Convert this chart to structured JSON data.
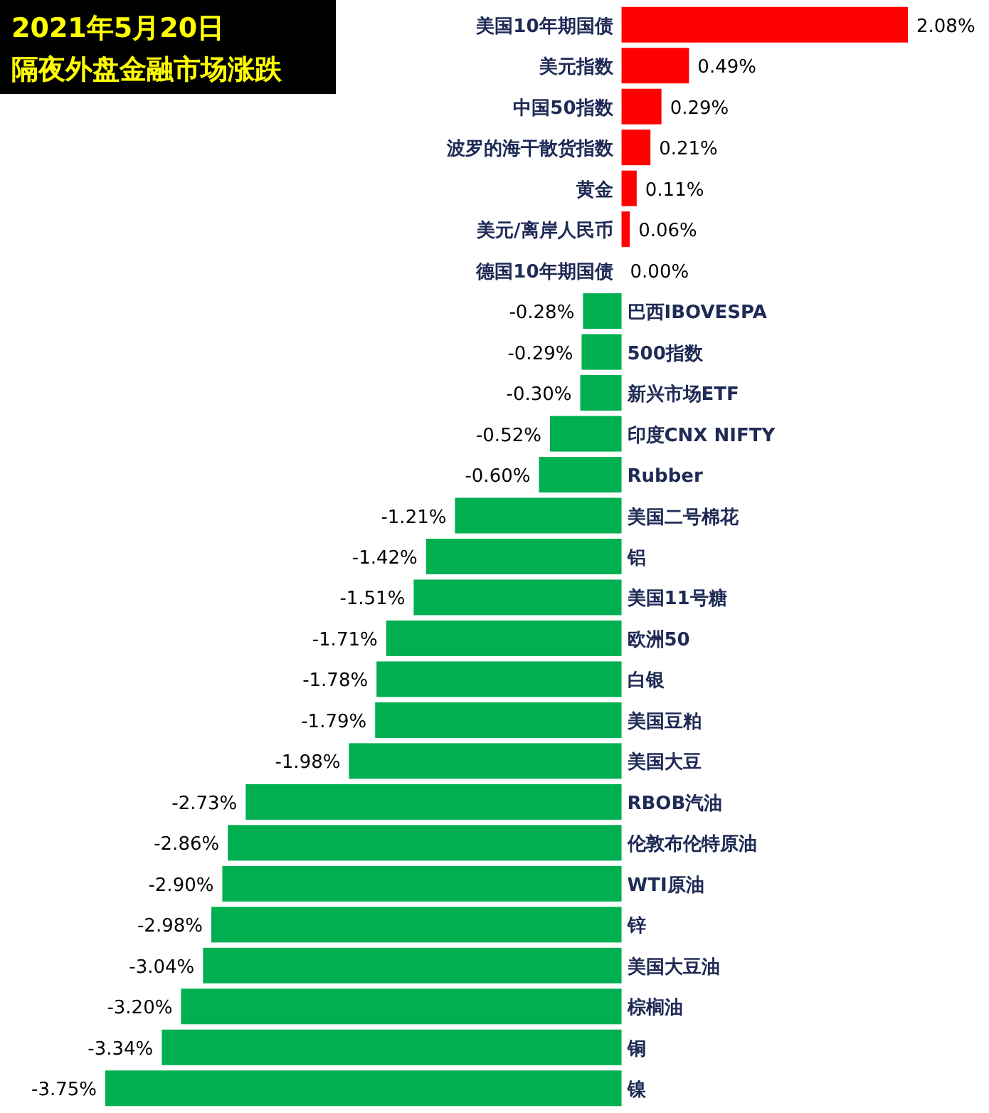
{
  "chart_data": {
    "type": "bar",
    "orientation": "horizontal",
    "title": "2021年5月20日",
    "subtitle": "隔夜外盘金融市场涨跌",
    "value_labels": [
      "2.08%",
      "0.49%",
      "0.29%",
      "0.21%",
      "0.11%",
      "0.06%",
      "0.00%",
      "-0.28%",
      "-0.29%",
      "-0.30%",
      "-0.52%",
      "-0.60%",
      "-1.21%",
      "-1.42%",
      "-1.51%",
      "-1.71%",
      "-1.78%",
      "-1.79%",
      "-1.98%",
      "-2.73%",
      "-2.86%",
      "-2.90%",
      "-2.98%",
      "-3.04%",
      "-3.20%",
      "-3.34%",
      "-3.75%"
    ],
    "categories": [
      "美国10年期国债",
      "美元指数",
      "中国50指数",
      "波罗的海干散货指数",
      "黄金",
      "美元/离岸人民币",
      "德国10年期国债",
      "巴西IBOVESPA",
      "500指数",
      "新兴市场ETF",
      "印度CNX NIFTY",
      "Rubber",
      "美国二号棉花",
      "铝",
      "美国11号糖",
      "欧洲50",
      "白银",
      "美国豆粕",
      "美国大豆",
      "RBOB汽油",
      "伦敦布伦特原油",
      "WTI原油",
      "锌",
      "美国大豆油",
      "棕榈油",
      "铜",
      "镍"
    ],
    "values": [
      2.08,
      0.49,
      0.29,
      0.21,
      0.11,
      0.06,
      0.0,
      -0.28,
      -0.29,
      -0.3,
      -0.52,
      -0.6,
      -1.21,
      -1.42,
      -1.51,
      -1.71,
      -1.78,
      -1.79,
      -1.98,
      -2.73,
      -2.86,
      -2.9,
      -2.98,
      -3.04,
      -3.2,
      -3.34,
      -3.75
    ],
    "colors": [
      "#ff0000",
      "#ff0000",
      "#ff0000",
      "#ff0000",
      "#ff0000",
      "#ff0000",
      "#ff0000",
      "#00b050",
      "#00b050",
      "#00b050",
      "#00b050",
      "#00b050",
      "#00b050",
      "#00b050",
      "#00b050",
      "#00b050",
      "#00b050",
      "#00b050",
      "#00b050",
      "#00b050",
      "#00b050",
      "#00b050",
      "#00b050",
      "#00b050",
      "#00b050",
      "#00b050",
      "#00b050"
    ]
  }
}
